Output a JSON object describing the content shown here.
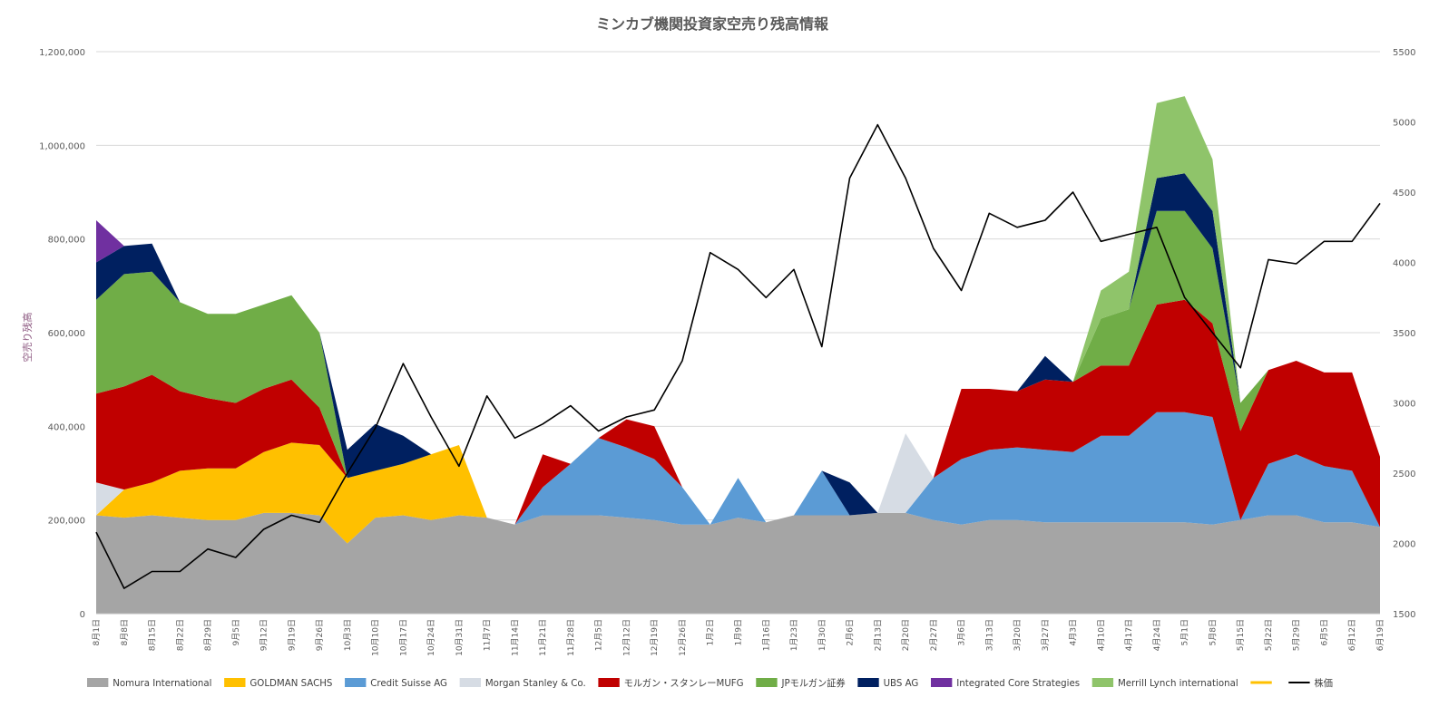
{
  "chart_data": {
    "type": "area",
    "stacked": true,
    "title": "ミンカブ機関投資家空売り残高情報",
    "ylabel": "空売り残高",
    "y2label": "",
    "ylim": [
      0,
      1200000
    ],
    "y2lim": [
      1500,
      5500
    ],
    "yticks": [
      "0",
      "200,000",
      "400,000",
      "600,000",
      "800,000",
      "1,000,000",
      "1,200,000"
    ],
    "y2ticks": [
      "1500",
      "2000",
      "2500",
      "3000",
      "3500",
      "4000",
      "4500",
      "5000",
      "5500"
    ],
    "grid": "horizontal",
    "legend_position": "bottom",
    "x_labels": [
      "8月1日",
      "8月8日",
      "8月15日",
      "8月22日",
      "8月29日",
      "9月5日",
      "9月12日",
      "9月19日",
      "9月26日",
      "10月3日",
      "10月10日",
      "10月17日",
      "10月24日",
      "10月31日",
      "11月7日",
      "11月14日",
      "11月21日",
      "11月28日",
      "12月5日",
      "12月12日",
      "12月19日",
      "12月26日",
      "1月2日",
      "1月9日",
      "1月16日",
      "1月23日",
      "1月30日",
      "2月6日",
      "2月13日",
      "2月20日",
      "2月27日",
      "3月6日",
      "3月13日",
      "3月20日",
      "3月27日",
      "4月3日",
      "4月10日",
      "4月17日",
      "4月24日",
      "5月1日",
      "5月8日",
      "5月15日",
      "5月22日",
      "5月29日",
      "6月5日",
      "6月12日",
      "6月19日"
    ],
    "series": [
      {
        "name": "Nomura International",
        "color": "#a5a5a5",
        "values": [
          210000,
          205000,
          210000,
          205000,
          200000,
          200000,
          215000,
          215000,
          210000,
          150000,
          205000,
          210000,
          200000,
          210000,
          205000,
          190000,
          210000,
          210000,
          210000,
          205000,
          200000,
          190000,
          190000,
          205000,
          195000,
          210000,
          210000,
          210000,
          215000,
          215000,
          200000,
          190000,
          200000,
          200000,
          195000,
          195000,
          195000,
          195000,
          195000,
          195000,
          190000,
          200000,
          210000,
          210000,
          195000,
          195000,
          185000
        ]
      },
      {
        "name": "GOLDMAN SACHS",
        "color": "#ffc000",
        "values": [
          0,
          60000,
          70000,
          100000,
          110000,
          110000,
          130000,
          150000,
          150000,
          140000,
          100000,
          110000,
          140000,
          150000,
          0,
          0,
          0,
          0,
          0,
          0,
          0,
          0,
          0,
          0,
          0,
          0,
          0,
          0,
          0,
          0,
          0,
          0,
          0,
          0,
          0,
          0,
          0,
          0,
          0,
          0,
          0,
          0,
          0,
          0,
          0,
          0,
          0
        ]
      },
      {
        "name": "Credit Suisse AG",
        "color": "#5b9bd5",
        "values": [
          0,
          0,
          0,
          0,
          0,
          0,
          0,
          0,
          0,
          0,
          0,
          0,
          0,
          0,
          0,
          0,
          60000,
          110000,
          165000,
          150000,
          130000,
          80000,
          0,
          85000,
          0,
          0,
          95000,
          0,
          0,
          0,
          90000,
          140000,
          150000,
          155000,
          155000,
          150000,
          185000,
          185000,
          235000,
          235000,
          230000,
          0,
          110000,
          130000,
          120000,
          110000,
          0
        ]
      },
      {
        "name": "Morgan Stanley & Co.",
        "color": "#d6dce4",
        "values": [
          70000,
          0,
          0,
          0,
          0,
          0,
          0,
          0,
          0,
          0,
          0,
          0,
          0,
          0,
          0,
          0,
          0,
          0,
          0,
          0,
          0,
          0,
          0,
          0,
          0,
          0,
          0,
          0,
          0,
          170000,
          0,
          0,
          0,
          0,
          0,
          0,
          0,
          0,
          0,
          0,
          0,
          0,
          0,
          0,
          0,
          0,
          0
        ]
      },
      {
        "name": "モルガン・スタンレーMUFG",
        "color": "#c00000",
        "values": [
          190000,
          220000,
          230000,
          170000,
          150000,
          140000,
          135000,
          135000,
          80000,
          0,
          0,
          0,
          0,
          0,
          0,
          0,
          70000,
          0,
          0,
          60000,
          70000,
          0,
          0,
          0,
          0,
          0,
          0,
          0,
          0,
          0,
          0,
          150000,
          130000,
          120000,
          150000,
          150000,
          150000,
          150000,
          230000,
          240000,
          200000,
          190000,
          200000,
          200000,
          200000,
          210000,
          150000
        ]
      },
      {
        "name": "JPモルガン証券",
        "color": "#70ad47",
        "values": [
          200000,
          240000,
          220000,
          190000,
          180000,
          190000,
          180000,
          180000,
          160000,
          0,
          0,
          0,
          0,
          0,
          0,
          0,
          0,
          0,
          0,
          0,
          0,
          0,
          0,
          0,
          0,
          0,
          0,
          0,
          0,
          0,
          0,
          0,
          0,
          0,
          0,
          0,
          100000,
          120000,
          200000,
          190000,
          160000,
          60000,
          0,
          0,
          0,
          0,
          0
        ]
      },
      {
        "name": "UBS AG",
        "color": "#002060",
        "values": [
          80000,
          60000,
          60000,
          0,
          0,
          0,
          0,
          0,
          0,
          60000,
          100000,
          60000,
          0,
          0,
          0,
          0,
          0,
          0,
          0,
          0,
          0,
          0,
          0,
          0,
          0,
          0,
          0,
          70000,
          0,
          0,
          0,
          0,
          0,
          0,
          50000,
          0,
          0,
          0,
          70000,
          80000,
          80000,
          0,
          0,
          0,
          0,
          0,
          0
        ]
      },
      {
        "name": "Integrated Core Strategies",
        "color": "#7030a0",
        "values": [
          90000,
          0,
          0,
          0,
          0,
          0,
          0,
          0,
          0,
          0,
          0,
          0,
          0,
          0,
          0,
          0,
          0,
          0,
          0,
          0,
          0,
          0,
          0,
          0,
          0,
          0,
          0,
          0,
          0,
          0,
          0,
          0,
          0,
          0,
          0,
          0,
          0,
          0,
          0,
          0,
          0,
          0,
          0,
          0,
          0,
          0,
          0
        ]
      },
      {
        "name": "Merrill Lynch international",
        "color": "#8fc46a",
        "values": [
          0,
          0,
          0,
          0,
          0,
          0,
          0,
          0,
          0,
          0,
          0,
          0,
          0,
          0,
          0,
          0,
          0,
          0,
          0,
          0,
          0,
          0,
          0,
          0,
          0,
          0,
          0,
          0,
          0,
          0,
          0,
          0,
          0,
          0,
          0,
          0,
          60000,
          80000,
          160000,
          165000,
          110000,
          0,
          0,
          0,
          0,
          0,
          0
        ]
      },
      {
        "name": "",
        "color": "#ffc000",
        "values": []
      }
    ],
    "line_series": {
      "name": "株価",
      "color": "#000000",
      "axis": "y2",
      "values": [
        2080,
        1680,
        1800,
        1800,
        1960,
        1900,
        2100,
        2200,
        2150,
        2500,
        2820,
        3280,
        2900,
        2550,
        3050,
        2750,
        2850,
        2980,
        2800,
        2900,
        2950,
        3300,
        4070,
        3950,
        3750,
        3950,
        3400,
        4600,
        4980,
        4600,
        4100,
        3800,
        4350,
        4250,
        4300,
        4500,
        4150,
        4200,
        4250,
        3750,
        3500,
        3250,
        4020,
        3990,
        4150,
        4150,
        4420
      ]
    }
  }
}
